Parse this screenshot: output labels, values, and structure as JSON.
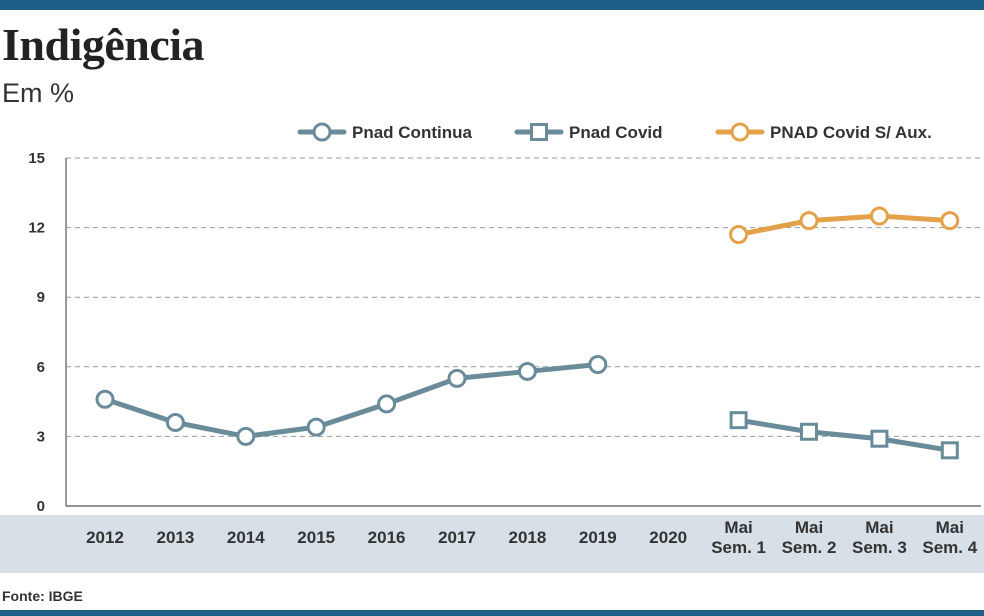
{
  "header": {
    "title": "Indigência",
    "subtitle": "Em %"
  },
  "footer": {
    "source": "Fonte: IBGE"
  },
  "colors": {
    "accent_bar": "#1d5f86",
    "pnad_continua": "#6a8c9a",
    "pnad_covid": "#6a8c9a",
    "pnad_covid_sem_aux": "#e3a24a",
    "axis_band": "#d6e0e6",
    "grid": "#9a9a9a"
  },
  "chart_data": {
    "type": "line",
    "ylim": [
      0,
      15
    ],
    "yticks": [
      0,
      3,
      6,
      9,
      12,
      15
    ],
    "grid": "dashed horizontal",
    "legend_position": "top-right",
    "categories": [
      [
        "2012"
      ],
      [
        "2013"
      ],
      [
        "2014"
      ],
      [
        "2015"
      ],
      [
        "2016"
      ],
      [
        "2017"
      ],
      [
        "2018"
      ],
      [
        "2019"
      ],
      [
        "2020"
      ],
      [
        "Mai",
        "Sem. 1"
      ],
      [
        "Mai",
        "Sem. 2"
      ],
      [
        "Mai",
        "Sem. 3"
      ],
      [
        "Mai",
        "Sem. 4"
      ]
    ],
    "series": [
      {
        "name": "Pnad Continua",
        "marker": "circle",
        "color": "#6a8c9a",
        "values": [
          4.6,
          3.6,
          3.0,
          3.4,
          4.4,
          5.5,
          5.8,
          6.1,
          null,
          null,
          null,
          null,
          null
        ]
      },
      {
        "name": "Pnad Covid",
        "marker": "square",
        "color": "#6a8c9a",
        "values": [
          null,
          null,
          null,
          null,
          null,
          null,
          null,
          null,
          null,
          3.7,
          3.2,
          2.9,
          2.4
        ]
      },
      {
        "name": "PNAD Covid S/ Aux.",
        "marker": "circle",
        "color": "#e3a24a",
        "values": [
          null,
          null,
          null,
          null,
          null,
          null,
          null,
          null,
          null,
          11.7,
          12.3,
          12.5,
          12.3
        ]
      }
    ]
  }
}
